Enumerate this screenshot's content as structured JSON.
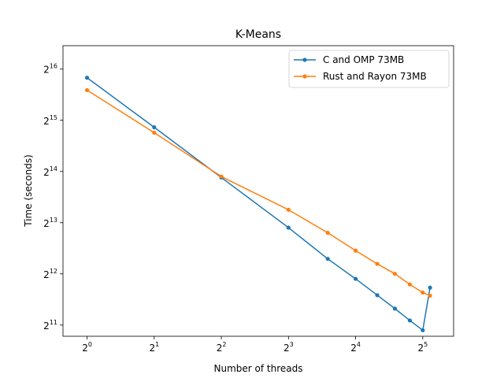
{
  "chart_data": {
    "type": "line",
    "title": "K-Means",
    "xlabel": "Number of threads",
    "ylabel": "Time (seconds)",
    "x_scale": "log2",
    "y_scale": "log2",
    "xlim": [
      0.78,
      44.0
    ],
    "ylim": [
      1760,
      90000
    ],
    "x_ticks": [
      {
        "base": "2",
        "exp": "0",
        "value": 1
      },
      {
        "base": "2",
        "exp": "1",
        "value": 2
      },
      {
        "base": "2",
        "exp": "2",
        "value": 4
      },
      {
        "base": "2",
        "exp": "3",
        "value": 8
      },
      {
        "base": "2",
        "exp": "4",
        "value": 16
      },
      {
        "base": "2",
        "exp": "5",
        "value": 32
      }
    ],
    "y_ticks": [
      {
        "base": "2",
        "exp": "11",
        "value": 2048
      },
      {
        "base": "2",
        "exp": "12",
        "value": 4096
      },
      {
        "base": "2",
        "exp": "13",
        "value": 8192
      },
      {
        "base": "2",
        "exp": "14",
        "value": 16384
      },
      {
        "base": "2",
        "exp": "15",
        "value": 32768
      },
      {
        "base": "2",
        "exp": "16",
        "value": 65536
      }
    ],
    "grid": false,
    "legend_position": "top-right",
    "series": [
      {
        "name": "C and OMP 73MB",
        "color": "#1f77b4",
        "x": [
          1,
          2,
          4,
          8,
          12,
          16,
          20,
          24,
          28,
          32,
          34.5
        ],
        "y": [
          58300,
          29800,
          15100,
          7660,
          5020,
          3830,
          3070,
          2560,
          2180,
          1910,
          3400
        ]
      },
      {
        "name": "Rust and Rayon 73MB",
        "color": "#ff7f0e",
        "x": [
          1,
          2,
          4,
          8,
          12,
          16,
          20,
          24,
          28,
          32,
          34.5
        ],
        "y": [
          49300,
          27700,
          15300,
          9760,
          7140,
          5610,
          4690,
          4100,
          3550,
          3180,
          3050
        ]
      }
    ]
  }
}
